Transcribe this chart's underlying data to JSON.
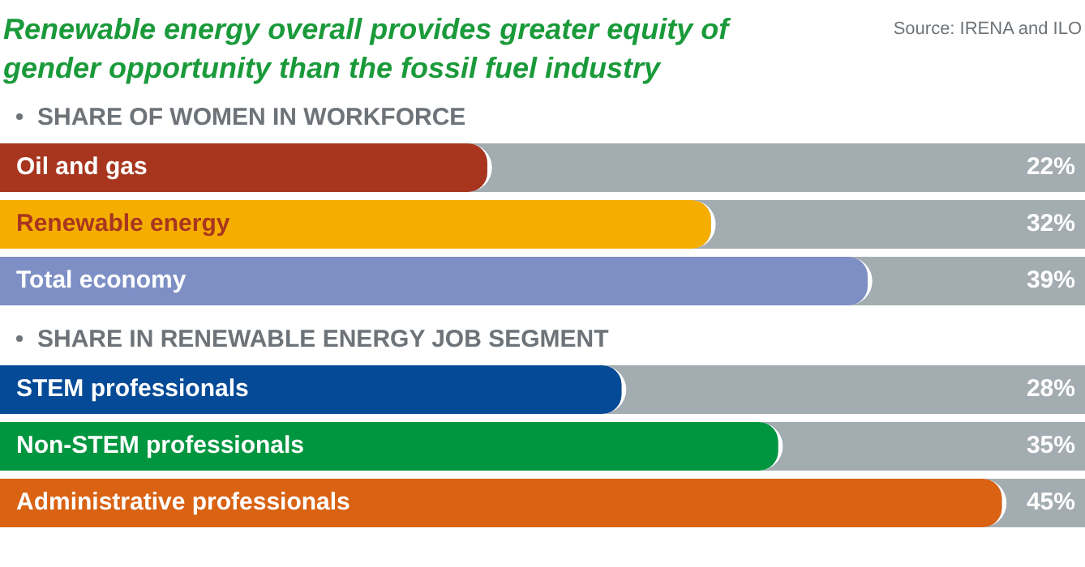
{
  "chart_data": [
    {
      "type": "bar",
      "orientation": "horizontal",
      "title": "Renewable energy overall provides greater equity of gender opportunity than the fossil fuel industry",
      "subtitle": "SHARE OF WOMEN IN WORKFORCE",
      "annotations": [
        "Source: IRENA and ILO"
      ],
      "categories": [
        "Oil and gas",
        "Renewable energy",
        "Total economy"
      ],
      "values": [
        22,
        32,
        39
      ],
      "value_labels": [
        "22%",
        "32%",
        "39%"
      ],
      "colors": [
        "#a8361f",
        "#f5ae00",
        "#7d8fc4"
      ],
      "xlim": [
        0,
        48.5
      ],
      "tick_labels": false
    },
    {
      "type": "bar",
      "orientation": "horizontal",
      "subtitle": "SHARE IN RENEWABLE ENERGY JOB SEGMENT",
      "categories": [
        "STEM professionals",
        "Non-STEM professionals",
        "Administrative professionals"
      ],
      "values": [
        28,
        35,
        45
      ],
      "value_labels": [
        "28%",
        "35%",
        "45%"
      ],
      "colors": [
        "#044a96",
        "#00963f",
        "#d96213"
      ],
      "xlim": [
        0,
        48.5
      ],
      "tick_labels": false
    }
  ]
}
